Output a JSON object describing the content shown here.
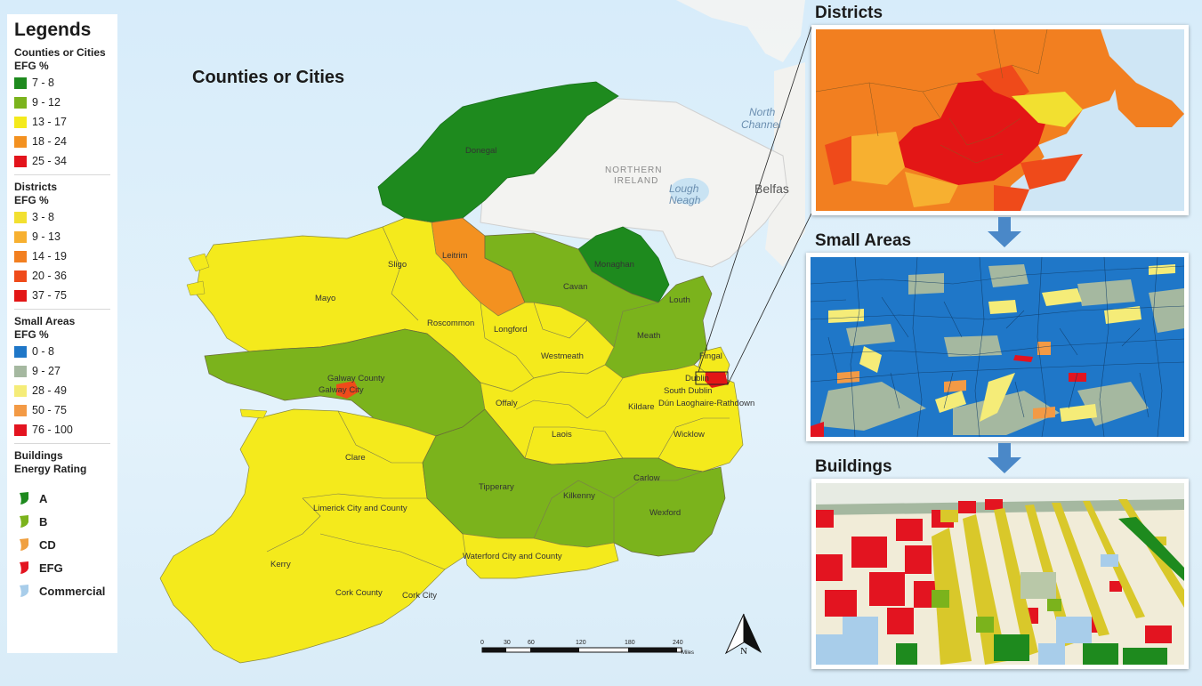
{
  "legend": {
    "title": "Legends",
    "counties": {
      "heading": "Counties or Cities",
      "unit": "EFG %",
      "items": [
        {
          "label": "7 - 8",
          "color": "#1e8a1e"
        },
        {
          "label": "9 - 12",
          "color": "#7bb31c"
        },
        {
          "label": "13 - 17",
          "color": "#f4ea1c"
        },
        {
          "label": "18 - 24",
          "color": "#f39120"
        },
        {
          "label": "25 - 34",
          "color": "#e3141c"
        }
      ]
    },
    "districts": {
      "heading": "Districts",
      "unit": "EFG %",
      "items": [
        {
          "label": "3 - 8",
          "color": "#f2e030"
        },
        {
          "label": "9 - 13",
          "color": "#f7b030"
        },
        {
          "label": "14 - 19",
          "color": "#f27f20"
        },
        {
          "label": "20 - 36",
          "color": "#ef4a1a"
        },
        {
          "label": "37 - 75",
          "color": "#e31616"
        }
      ]
    },
    "small_areas": {
      "heading": "Small Areas",
      "unit": "EFG %",
      "items": [
        {
          "label": "0 - 8",
          "color": "#1f77c8"
        },
        {
          "label": "9 - 27",
          "color": "#a5b8a0"
        },
        {
          "label": "28 - 49",
          "color": "#f5ec78"
        },
        {
          "label": "50 - 75",
          "color": "#f39a45"
        },
        {
          "label": "76 - 100",
          "color": "#e31420"
        }
      ]
    },
    "buildings": {
      "heading1": "Buildings",
      "heading2": "Energy Rating",
      "items": [
        {
          "label": "A",
          "color": "#1e8a1e",
          "icon": "shield-icon"
        },
        {
          "label": "B",
          "color": "#7bb31c",
          "icon": "shield-icon"
        },
        {
          "label": "CD",
          "color": "#f0a040",
          "icon": "shield-icon"
        },
        {
          "label": "EFG",
          "color": "#e31420",
          "icon": "shield-icon"
        },
        {
          "label": "Commercial",
          "color": "#a8cdea",
          "icon": "shield-icon"
        }
      ]
    }
  },
  "map": {
    "title": "Counties or Cities",
    "northern_ireland": [
      "NORTHERN",
      "IRELAND"
    ],
    "lough": [
      "Lough",
      "Neagh"
    ],
    "sea": [
      "North",
      "Channel"
    ],
    "belfast": "Belfas",
    "counties": {
      "donegal": "Donegal",
      "sligo": "Sligo",
      "leitrim": "Leitrim",
      "monaghan": "Monaghan",
      "mayo": "Mayo",
      "cavan": "Cavan",
      "louth": "Louth",
      "roscommon": "Roscommon",
      "longford": "Longford",
      "meath": "Meath",
      "westmeath": "Westmeath",
      "fingal": "Fingal",
      "galway_county": "Galway County",
      "galway_city": "Galway City",
      "dublin": "Dublin",
      "south_dublin": "South Dublin",
      "dun_laoghaire": "Dún Laoghaire-Rathdown",
      "offaly": "Offaly",
      "kildare": "Kildare",
      "laois": "Laois",
      "wicklow": "Wicklow",
      "clare": "Clare",
      "tipperary": "Tipperary",
      "kilkenny": "Kilkenny",
      "carlow": "Carlow",
      "wexford": "Wexford",
      "limerick": "Limerick City and County",
      "waterford": "Waterford City and County",
      "kerry": "Kerry",
      "cork_county": "Cork County",
      "cork_city": "Cork City"
    },
    "scale": {
      "ticks": [
        "0",
        "30",
        "60",
        "120",
        "180",
        "240"
      ],
      "unit": "Miles"
    },
    "north": "N"
  },
  "panels": {
    "districts": {
      "title": "Districts"
    },
    "small_areas": {
      "title": "Small Areas"
    },
    "buildings": {
      "title": "Buildings"
    }
  }
}
